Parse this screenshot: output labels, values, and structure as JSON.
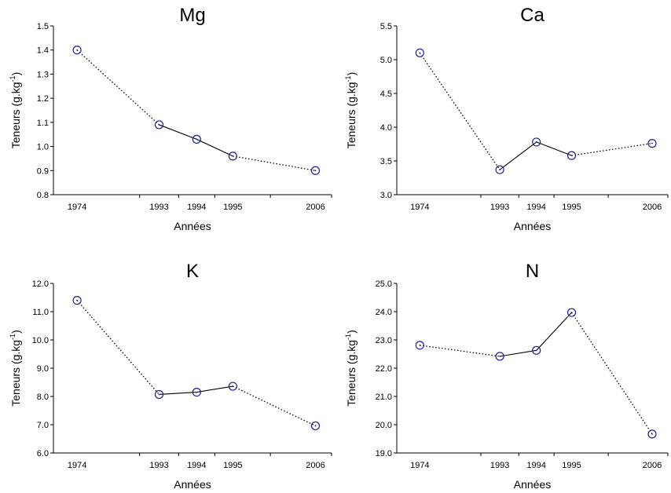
{
  "chart_data": [
    {
      "type": "line",
      "title": "Mg",
      "xlabel": "Années",
      "ylabel": "Teneurs (g.kg",
      "ylabel_sup": "-1",
      "ylabel_close": ")",
      "categories": [
        "1974",
        "1993",
        "1994",
        "1995",
        "2006"
      ],
      "x": [
        1974,
        1993,
        1994,
        1995,
        2006
      ],
      "values": [
        1.4,
        1.09,
        1.03,
        0.96,
        0.9
      ],
      "segment_styles": [
        "dotted",
        "solid",
        "solid",
        "dotted"
      ],
      "ylim": [
        0.8,
        1.5
      ],
      "yticks": [
        "0.8",
        "0.9",
        "1.0",
        "1.1",
        "1.2",
        "1.3",
        "1.4",
        "1.5"
      ],
      "grid": false
    },
    {
      "type": "line",
      "title": "Ca",
      "xlabel": "Années",
      "ylabel": "Teneurs (g.kg",
      "ylabel_sup": "-1",
      "ylabel_close": ")",
      "categories": [
        "1974",
        "1993",
        "1994",
        "1995",
        "2006"
      ],
      "x": [
        1974,
        1993,
        1994,
        1995,
        2006
      ],
      "values": [
        5.1,
        3.37,
        3.78,
        3.58,
        3.76
      ],
      "segment_styles": [
        "dotted",
        "solid",
        "solid",
        "dotted"
      ],
      "ylim": [
        3.0,
        5.5
      ],
      "yticks": [
        "3.0",
        "3.5",
        "4.0",
        "4.5",
        "5.0",
        "5.5"
      ],
      "grid": false
    },
    {
      "type": "line",
      "title": "K",
      "xlabel": "Années",
      "ylabel": "Teneurs (g.kg",
      "ylabel_sup": "-1",
      "ylabel_close": ")",
      "categories": [
        "1974",
        "1993",
        "1994",
        "1995",
        "2006"
      ],
      "x": [
        1974,
        1993,
        1994,
        1995,
        2006
      ],
      "values": [
        11.4,
        8.07,
        8.15,
        8.36,
        6.96
      ],
      "segment_styles": [
        "dotted",
        "solid",
        "solid",
        "dotted"
      ],
      "ylim": [
        6.0,
        12.0
      ],
      "yticks": [
        "6.0",
        "7.0",
        "8.0",
        "9.0",
        "10.0",
        "11.0",
        "12.0"
      ],
      "grid": false
    },
    {
      "type": "line",
      "title": "N",
      "xlabel": "Années",
      "ylabel": "Teneurs (g.kg",
      "ylabel_sup": "-1",
      "ylabel_close": ")",
      "categories": [
        "1974",
        "1993",
        "1994",
        "1995",
        "2006"
      ],
      "x": [
        1974,
        1993,
        1994,
        1995,
        2006
      ],
      "values": [
        22.81,
        22.42,
        22.63,
        23.97,
        19.67
      ],
      "segment_styles": [
        "dotted",
        "solid",
        "solid",
        "dotted"
      ],
      "ylim": [
        19.0,
        25.0
      ],
      "yticks": [
        "19.0",
        "20.0",
        "21.0",
        "22.0",
        "23.0",
        "24.0",
        "25.0"
      ],
      "grid": false
    }
  ],
  "colors": {
    "marker": "#1f1f99",
    "line": "#000000",
    "axis": "#000000"
  }
}
